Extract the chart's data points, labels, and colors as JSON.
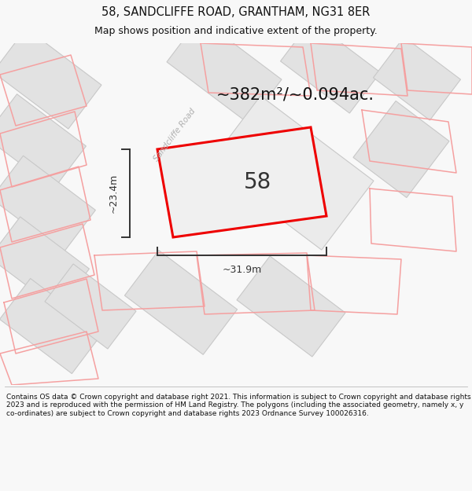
{
  "title_line1": "58, SANDCLIFFE ROAD, GRANTHAM, NG31 8ER",
  "title_line2": "Map shows position and indicative extent of the property.",
  "area_label": "~382m²/~0.094ac.",
  "width_label": "~31.9m",
  "height_label": "~23.4m",
  "number_label": "58",
  "road_label": "Sandcliffe Road",
  "footer_text": "Contains OS data © Crown copyright and database right 2021. This information is subject to Crown copyright and database rights 2023 and is reproduced with the permission of HM Land Registry. The polygons (including the associated geometry, namely x, y co-ordinates) are subject to Crown copyright and database rights 2023 Ordnance Survey 100026316.",
  "bg_color": "#f8f8f8",
  "map_bg": "#ffffff",
  "building_fill": "#e2e2e2",
  "building_edge": "#c8c8c8",
  "property_color": "#ee0000",
  "dim_color": "#333333",
  "road_label_color": "#b0b0b0",
  "footer_color": "#111111",
  "title_color": "#111111",
  "pink": "#f5a0a0",
  "title_fontsize": 10.5,
  "subtitle_fontsize": 9.0,
  "area_fontsize": 15,
  "number_fontsize": 20,
  "dim_fontsize": 9,
  "road_label_fontsize": 7.5,
  "footer_fontsize": 6.5
}
